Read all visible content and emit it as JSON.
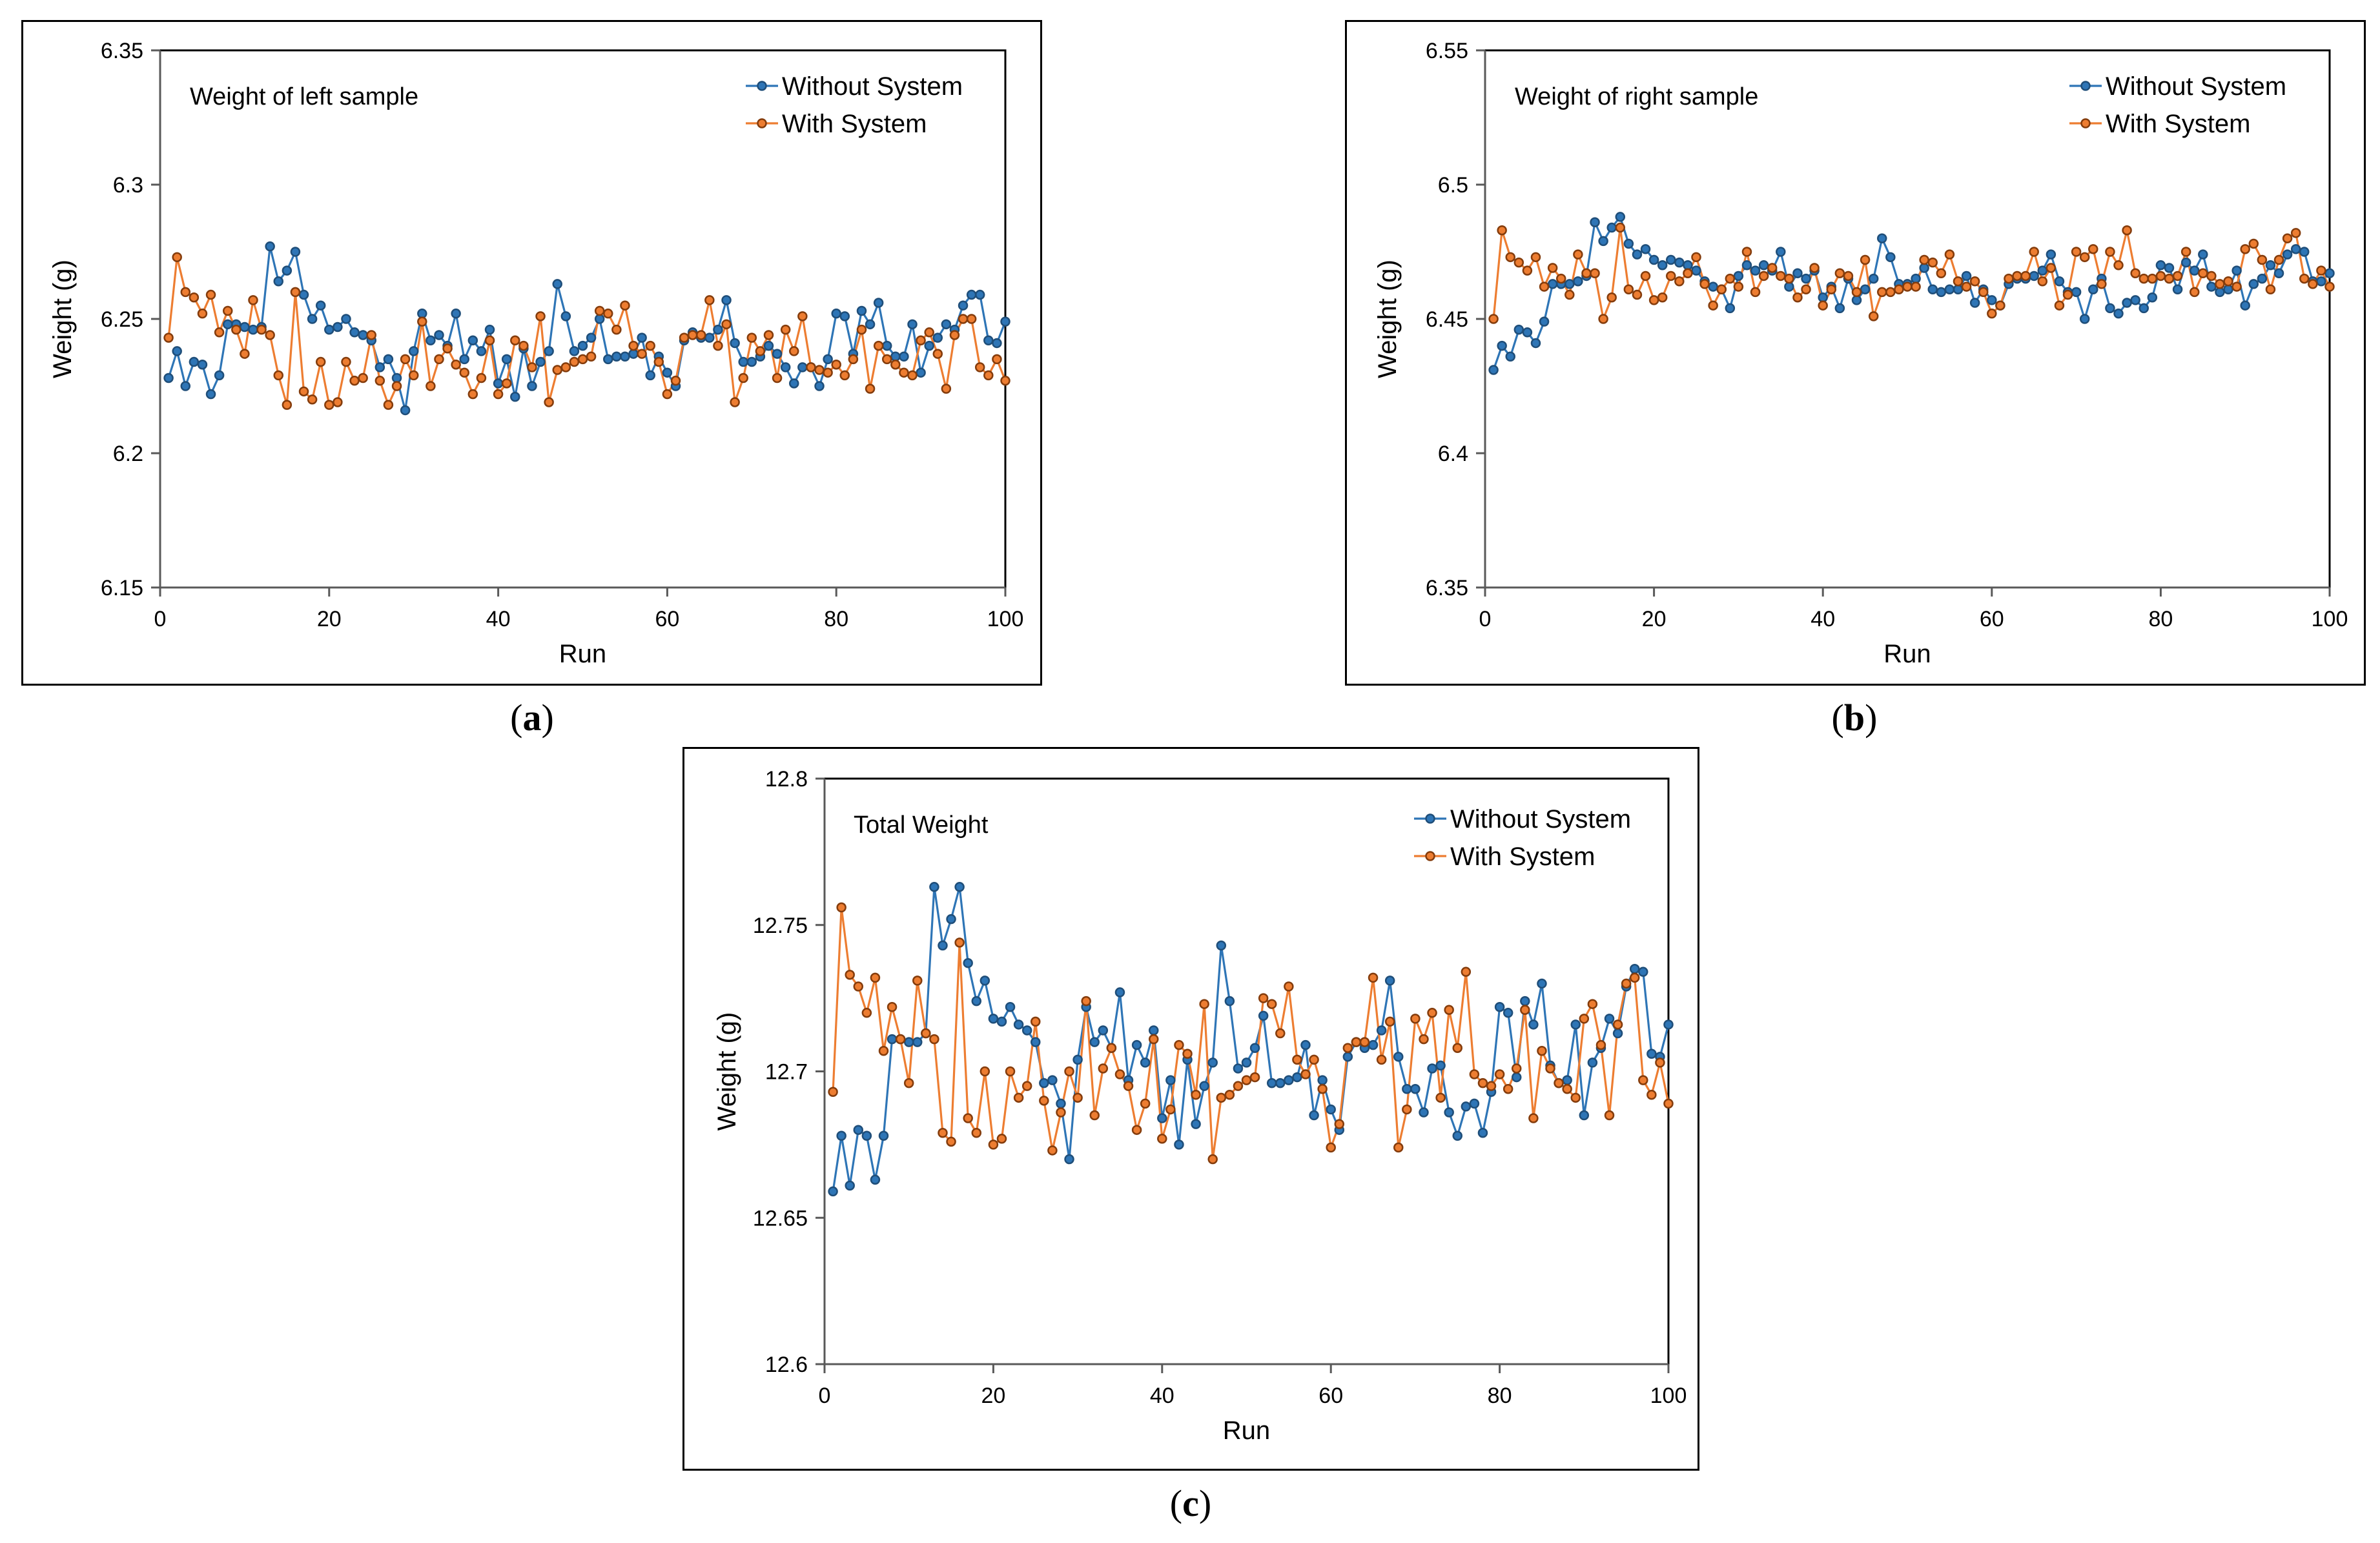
{
  "colors": {
    "without": "#2E75B6",
    "without_dark": "#1F4E79",
    "with": "#ED7D31",
    "with_dark": "#843C0C",
    "axis": "#D9D9D9"
  },
  "panels": [
    {
      "label_open": "(",
      "label_letter": "a",
      "label_close": ")"
    },
    {
      "label_open": "(",
      "label_letter": "b",
      "label_close": ")"
    },
    {
      "label_open": "(",
      "label_letter": "c",
      "label_close": ")"
    }
  ],
  "chart_data": [
    {
      "type": "line",
      "title": "Weight of left sample",
      "xlabel": "Run",
      "ylabel": "Weight (g)",
      "xlim": [
        0,
        100
      ],
      "ylim": [
        6.15,
        6.35
      ],
      "xticks": [
        "0",
        "20",
        "40",
        "60",
        "80",
        "100"
      ],
      "yticks": [
        "6.15",
        "6.2",
        "6.25",
        "6.3",
        "6.35"
      ],
      "legend": "top-right",
      "series": [
        {
          "name": "Without System",
          "values": [
            6.228,
            6.238,
            6.225,
            6.234,
            6.233,
            6.222,
            6.229,
            6.248,
            6.248,
            6.247,
            6.246,
            6.247,
            6.277,
            6.264,
            6.268,
            6.275,
            6.259,
            6.25,
            6.255,
            6.246,
            6.247,
            6.25,
            6.245,
            6.244,
            6.242,
            6.232,
            6.235,
            6.228,
            6.216,
            6.238,
            6.252,
            6.242,
            6.244,
            6.24,
            6.252,
            6.235,
            6.242,
            6.238,
            6.246,
            6.226,
            6.235,
            6.221,
            6.239,
            6.225,
            6.234,
            6.238,
            6.263,
            6.251,
            6.238,
            6.24,
            6.243,
            6.25,
            6.235,
            6.236,
            6.236,
            6.237,
            6.243,
            6.229,
            6.236,
            6.23,
            6.225,
            6.242,
            6.245,
            6.243,
            6.243,
            6.246,
            6.257,
            6.241,
            6.234,
            6.234,
            6.236,
            6.24,
            6.237,
            6.232,
            6.226,
            6.232,
            6.232,
            6.225,
            6.235,
            6.252,
            6.251,
            6.237,
            6.253,
            6.248,
            6.256,
            6.24,
            6.236,
            6.236,
            6.248,
            6.23,
            6.24,
            6.243,
            6.248,
            6.246,
            6.255,
            6.259,
            6.259,
            6.242,
            6.241,
            6.249
          ]
        },
        {
          "name": "With System",
          "values": [
            6.243,
            6.273,
            6.26,
            6.258,
            6.252,
            6.259,
            6.245,
            6.253,
            6.246,
            6.237,
            6.257,
            6.246,
            6.244,
            6.229,
            6.218,
            6.26,
            6.223,
            6.22,
            6.234,
            6.218,
            6.219,
            6.234,
            6.227,
            6.228,
            6.244,
            6.227,
            6.218,
            6.225,
            6.235,
            6.229,
            6.249,
            6.225,
            6.235,
            6.239,
            6.233,
            6.23,
            6.222,
            6.228,
            6.242,
            6.222,
            6.226,
            6.242,
            6.24,
            6.232,
            6.251,
            6.219,
            6.231,
            6.232,
            6.234,
            6.235,
            6.236,
            6.253,
            6.252,
            6.246,
            6.255,
            6.24,
            6.237,
            6.24,
            6.234,
            6.222,
            6.227,
            6.243,
            6.244,
            6.244,
            6.257,
            6.24,
            6.248,
            6.219,
            6.228,
            6.243,
            6.238,
            6.244,
            6.228,
            6.246,
            6.238,
            6.251,
            6.232,
            6.231,
            6.23,
            6.233,
            6.229,
            6.235,
            6.246,
            6.224,
            6.24,
            6.235,
            6.233,
            6.23,
            6.229,
            6.242,
            6.245,
            6.237,
            6.224,
            6.244,
            6.25,
            6.25,
            6.232,
            6.229,
            6.235,
            6.227
          ]
        }
      ]
    },
    {
      "type": "line",
      "title": "Weight of right sample",
      "xlabel": "Run",
      "ylabel": "Weight (g)",
      "xlim": [
        0,
        100
      ],
      "ylim": [
        6.35,
        6.55
      ],
      "xticks": [
        "0",
        "20",
        "40",
        "60",
        "80",
        "100"
      ],
      "yticks": [
        "6.35",
        "6.4",
        "6.45",
        "6.5",
        "6.55"
      ],
      "legend": "top-right",
      "series": [
        {
          "name": "Without System",
          "values": [
            6.431,
            6.44,
            6.436,
            6.446,
            6.445,
            6.441,
            6.449,
            6.463,
            6.463,
            6.463,
            6.464,
            6.466,
            6.486,
            6.479,
            6.484,
            6.488,
            6.478,
            6.474,
            6.476,
            6.472,
            6.47,
            6.472,
            6.471,
            6.47,
            6.468,
            6.464,
            6.462,
            6.461,
            6.454,
            6.466,
            6.47,
            6.468,
            6.47,
            6.468,
            6.475,
            6.462,
            6.467,
            6.465,
            6.468,
            6.458,
            6.462,
            6.454,
            6.465,
            6.457,
            6.461,
            6.465,
            6.48,
            6.473,
            6.463,
            6.463,
            6.465,
            6.469,
            6.461,
            6.46,
            6.461,
            6.461,
            6.466,
            6.456,
            6.461,
            6.457,
            6.455,
            6.463,
            6.465,
            6.465,
            6.466,
            6.468,
            6.474,
            6.464,
            6.46,
            6.46,
            6.45,
            6.461,
            6.465,
            6.454,
            6.452,
            6.456,
            6.457,
            6.454,
            6.458,
            6.47,
            6.469,
            6.461,
            6.471,
            6.468,
            6.474,
            6.462,
            6.46,
            6.461,
            6.468,
            6.455,
            6.463,
            6.465,
            6.47,
            6.467,
            6.474,
            6.476,
            6.475,
            6.464,
            6.464,
            6.467
          ]
        },
        {
          "name": "With System",
          "values": [
            6.45,
            6.483,
            6.473,
            6.471,
            6.468,
            6.473,
            6.462,
            6.469,
            6.465,
            6.459,
            6.474,
            6.467,
            6.467,
            6.45,
            6.458,
            6.484,
            6.461,
            6.459,
            6.466,
            6.457,
            6.458,
            6.466,
            6.464,
            6.467,
            6.473,
            6.463,
            6.455,
            6.461,
            6.465,
            6.462,
            6.475,
            6.46,
            6.466,
            6.469,
            6.466,
            6.465,
            6.458,
            6.461,
            6.469,
            6.455,
            6.461,
            6.467,
            6.466,
            6.46,
            6.472,
            6.451,
            6.46,
            6.46,
            6.461,
            6.462,
            6.462,
            6.472,
            6.471,
            6.467,
            6.474,
            6.464,
            6.462,
            6.464,
            6.46,
            6.452,
            6.455,
            6.465,
            6.466,
            6.466,
            6.475,
            6.464,
            6.469,
            6.455,
            6.459,
            6.475,
            6.473,
            6.476,
            6.463,
            6.475,
            6.47,
            6.483,
            6.467,
            6.465,
            6.465,
            6.466,
            6.465,
            6.466,
            6.475,
            6.46,
            6.467,
            6.466,
            6.463,
            6.464,
            6.462,
            6.476,
            6.478,
            6.472,
            6.461,
            6.472,
            6.48,
            6.482,
            6.465,
            6.463,
            6.468,
            6.462
          ]
        }
      ]
    },
    {
      "type": "line",
      "title": "Total Weight",
      "xlabel": "Run",
      "ylabel": "Weight (g)",
      "xlim": [
        0,
        100
      ],
      "ylim": [
        12.6,
        12.8
      ],
      "xticks": [
        "0",
        "20",
        "40",
        "60",
        "80",
        "100"
      ],
      "yticks": [
        "12.6",
        "12.65",
        "12.7",
        "12.75",
        "12.8"
      ],
      "legend": "top-right",
      "series": [
        {
          "name": "Without System",
          "values": [
            12.659,
            12.678,
            12.661,
            12.68,
            12.678,
            12.663,
            12.678,
            12.711,
            12.711,
            12.71,
            12.71,
            12.713,
            12.763,
            12.743,
            12.752,
            12.763,
            12.737,
            12.724,
            12.731,
            12.718,
            12.717,
            12.722,
            12.716,
            12.714,
            12.71,
            12.696,
            12.697,
            12.689,
            12.67,
            12.704,
            12.722,
            12.71,
            12.714,
            12.708,
            12.727,
            12.697,
            12.709,
            12.703,
            12.714,
            12.684,
            12.697,
            12.675,
            12.704,
            12.682,
            12.695,
            12.703,
            12.743,
            12.724,
            12.701,
            12.703,
            12.708,
            12.719,
            12.696,
            12.696,
            12.697,
            12.698,
            12.709,
            12.685,
            12.697,
            12.687,
            12.68,
            12.705,
            12.71,
            12.708,
            12.709,
            12.714,
            12.731,
            12.705,
            12.694,
            12.694,
            12.686,
            12.701,
            12.702,
            12.686,
            12.678,
            12.688,
            12.689,
            12.679,
            12.693,
            12.722,
            12.72,
            12.698,
            12.724,
            12.716,
            12.73,
            12.702,
            12.696,
            12.697,
            12.716,
            12.685,
            12.703,
            12.708,
            12.718,
            12.713,
            12.729,
            12.735,
            12.734,
            12.706,
            12.705,
            12.716
          ]
        },
        {
          "name": "With System",
          "values": [
            12.693,
            12.756,
            12.733,
            12.729,
            12.72,
            12.732,
            12.707,
            12.722,
            12.711,
            12.696,
            12.731,
            12.713,
            12.711,
            12.679,
            12.676,
            12.744,
            12.684,
            12.679,
            12.7,
            12.675,
            12.677,
            12.7,
            12.691,
            12.695,
            12.717,
            12.69,
            12.673,
            12.686,
            12.7,
            12.691,
            12.724,
            12.685,
            12.701,
            12.708,
            12.699,
            12.695,
            12.68,
            12.689,
            12.711,
            12.677,
            12.687,
            12.709,
            12.706,
            12.692,
            12.723,
            12.67,
            12.691,
            12.692,
            12.695,
            12.697,
            12.698,
            12.725,
            12.723,
            12.713,
            12.729,
            12.704,
            12.699,
            12.704,
            12.694,
            12.674,
            12.682,
            12.708,
            12.71,
            12.71,
            12.732,
            12.704,
            12.717,
            12.674,
            12.687,
            12.718,
            12.711,
            12.72,
            12.691,
            12.721,
            12.708,
            12.734,
            12.699,
            12.696,
            12.695,
            12.699,
            12.694,
            12.701,
            12.721,
            12.684,
            12.707,
            12.701,
            12.696,
            12.694,
            12.691,
            12.718,
            12.723,
            12.709,
            12.685,
            12.716,
            12.73,
            12.732,
            12.697,
            12.692,
            12.703,
            12.689
          ]
        }
      ]
    }
  ]
}
